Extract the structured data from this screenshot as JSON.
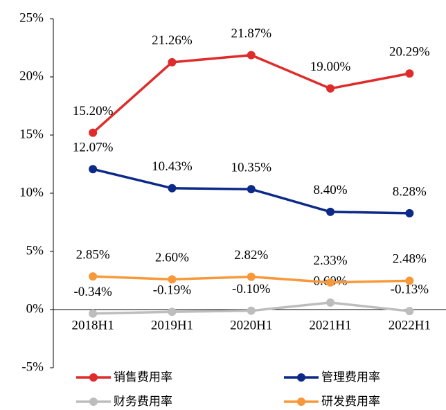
{
  "chart_data": {
    "type": "line",
    "categories": [
      "2018H1",
      "2019H1",
      "2020H1",
      "2021H1",
      "2022H1"
    ],
    "series": [
      {
        "name": "销售费用率",
        "color": "#e02b2b",
        "values": [
          15.2,
          21.26,
          21.87,
          19.0,
          20.29
        ],
        "value_labels": [
          "15.20%",
          "21.26%",
          "21.87%",
          "19.00%",
          "20.29%"
        ]
      },
      {
        "name": "管理费用率",
        "color": "#0d2a88",
        "values": [
          12.07,
          10.43,
          10.35,
          8.4,
          8.28
        ],
        "value_labels": [
          "12.07%",
          "10.43%",
          "10.35%",
          "8.40%",
          "8.28%"
        ]
      },
      {
        "name": "财务费用率",
        "color": "#bdbdbd",
        "values": [
          -0.34,
          -0.19,
          -0.1,
          0.6,
          -0.13
        ],
        "value_labels": [
          "-0.34%",
          "-0.19%",
          "-0.10%",
          "0.60%",
          "-0.13%"
        ]
      },
      {
        "name": "研发费用率",
        "color": "#f7993a",
        "values": [
          2.85,
          2.6,
          2.82,
          2.33,
          2.48
        ],
        "value_labels": [
          "2.85%",
          "2.60%",
          "2.82%",
          "2.33%",
          "2.48%"
        ]
      }
    ],
    "ylim": [
      -5,
      25
    ],
    "yticks": [
      {
        "value": -5,
        "label": "-5%"
      },
      {
        "value": 0,
        "label": "0%"
      },
      {
        "value": 5,
        "label": "5%"
      },
      {
        "value": 10,
        "label": "10%"
      },
      {
        "value": 15,
        "label": "15%"
      },
      {
        "value": 20,
        "label": "20%"
      },
      {
        "value": 25,
        "label": "25%"
      }
    ],
    "legend": "bottom"
  }
}
